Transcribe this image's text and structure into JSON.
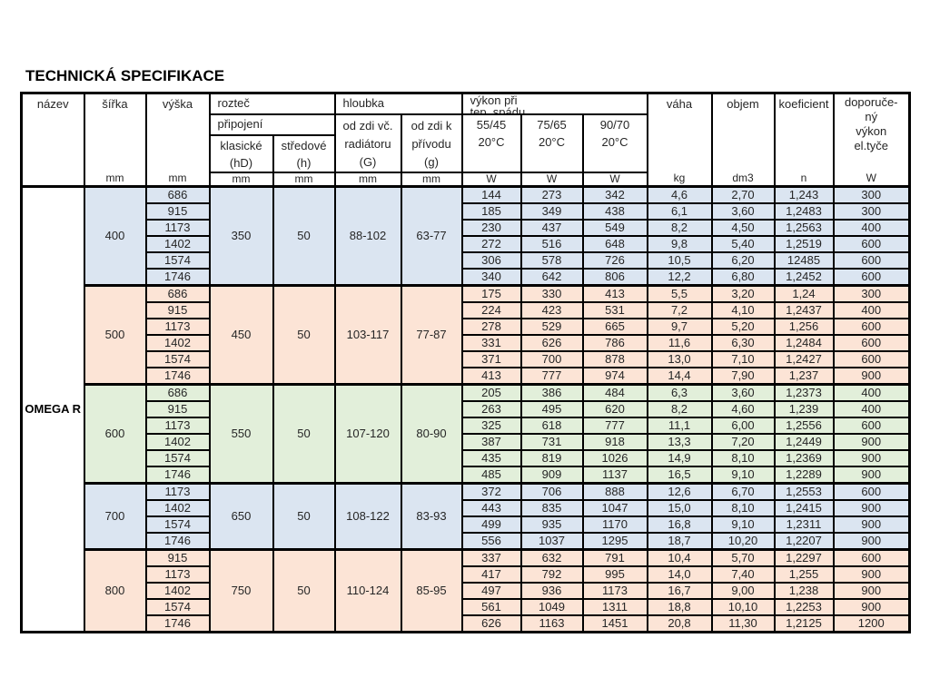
{
  "title": "TECHNICKÁ SPECIFIKACE",
  "product_name": "OMEGA R",
  "colors": {
    "blue": "#dbe5f1",
    "peach": "#fce4d6",
    "green": "#e2efda",
    "border": "#000000",
    "header_bg": "#ffffff"
  },
  "header": {
    "nazev": "název",
    "sirka": "šířka",
    "vyska": "výška",
    "roztec": "rozteč",
    "pripojeni": "připojení",
    "klasicke": {
      "l1": "klasické",
      "l2": "(hD)"
    },
    "stredove": {
      "l1": "středové",
      "l2": "(h)"
    },
    "hloubka": "hloubka",
    "od_zdi_vc": {
      "l1": "od zdi  vč.",
      "l2": "radiátoru",
      "l3": "(G)"
    },
    "od_zdi_k": {
      "l1": "od zdi  k",
      "l2": "přívodu",
      "l3": "(g)"
    },
    "vykon": {
      "l1": "výkon při",
      "l2": "tep. spádu"
    },
    "temps": [
      {
        "grad": "55/45",
        "temp": "20°C"
      },
      {
        "grad": "75/65",
        "temp": "20°C"
      },
      {
        "grad": "90/70",
        "temp": "20°C"
      }
    ],
    "vaha": "váha",
    "objem": "objem",
    "koeficient": "koeficient",
    "doporuceny": {
      "l1": "doporuče-",
      "l2": "ný",
      "l3": "výkon",
      "l4": "el.tyče"
    },
    "units": {
      "mm": "mm",
      "w": "W",
      "kg": "kg",
      "dm3": "dm3",
      "n": "n"
    }
  },
  "groups": [
    {
      "sirka": "400",
      "klasicke": "350",
      "stredove": "50",
      "hloubka_g": "88-102",
      "hloubka_p": "63-77",
      "color": "blue",
      "rows": [
        [
          "686",
          "144",
          "273",
          "342",
          "4,6",
          "2,70",
          "1,243",
          "300"
        ],
        [
          "915",
          "185",
          "349",
          "438",
          "6,1",
          "3,60",
          "1,2483",
          "300"
        ],
        [
          "1173",
          "230",
          "437",
          "549",
          "8,2",
          "4,50",
          "1,2563",
          "400"
        ],
        [
          "1402",
          "272",
          "516",
          "648",
          "9,8",
          "5,40",
          "1,2519",
          "600"
        ],
        [
          "1574",
          "306",
          "578",
          "726",
          "10,5",
          "6,20",
          "12485",
          "600"
        ],
        [
          "1746",
          "340",
          "642",
          "806",
          "12,2",
          "6,80",
          "1,2452",
          "600"
        ]
      ]
    },
    {
      "sirka": "500",
      "klasicke": "450",
      "stredove": "50",
      "hloubka_g": "103-117",
      "hloubka_p": "77-87",
      "color": "peach",
      "rows": [
        [
          "686",
          "175",
          "330",
          "413",
          "5,5",
          "3,20",
          "1,24",
          "300"
        ],
        [
          "915",
          "224",
          "423",
          "531",
          "7,2",
          "4,10",
          "1,2437",
          "400"
        ],
        [
          "1173",
          "278",
          "529",
          "665",
          "9,7",
          "5,20",
          "1,256",
          "600"
        ],
        [
          "1402",
          "331",
          "626",
          "786",
          "11,6",
          "6,30",
          "1,2484",
          "600"
        ],
        [
          "1574",
          "371",
          "700",
          "878",
          "13,0",
          "7,10",
          "1,2427",
          "600"
        ],
        [
          "1746",
          "413",
          "777",
          "974",
          "14,4",
          "7,90",
          "1,237",
          "900"
        ]
      ]
    },
    {
      "sirka": "600",
      "klasicke": "550",
      "stredove": "50",
      "hloubka_g": "107-120",
      "hloubka_p": "80-90",
      "color": "green",
      "rows": [
        [
          "686",
          "205",
          "386",
          "484",
          "6,3",
          "3,60",
          "1,2373",
          "400"
        ],
        [
          "915",
          "263",
          "495",
          "620",
          "8,2",
          "4,60",
          "1,239",
          "400"
        ],
        [
          "1173",
          "325",
          "618",
          "777",
          "11,1",
          "6,00",
          "1,2556",
          "600"
        ],
        [
          "1402",
          "387",
          "731",
          "918",
          "13,3",
          "7,20",
          "1,2449",
          "900"
        ],
        [
          "1574",
          "435",
          "819",
          "1026",
          "14,9",
          "8,10",
          "1,2369",
          "900"
        ],
        [
          "1746",
          "485",
          "909",
          "1137",
          "16,5",
          "9,10",
          "1,2289",
          "900"
        ]
      ]
    },
    {
      "sirka": "700",
      "klasicke": "650",
      "stredove": "50",
      "hloubka_g": "108-122",
      "hloubka_p": "83-93",
      "color": "blue",
      "rows": [
        [
          "1173",
          "372",
          "706",
          "888",
          "12,6",
          "6,70",
          "1,2553",
          "600"
        ],
        [
          "1402",
          "443",
          "835",
          "1047",
          "15,0",
          "8,10",
          "1,2415",
          "900"
        ],
        [
          "1574",
          "499",
          "935",
          "1170",
          "16,8",
          "9,10",
          "1,2311",
          "900"
        ],
        [
          "1746",
          "556",
          "1037",
          "1295",
          "18,7",
          "10,20",
          "1,2207",
          "900"
        ]
      ]
    },
    {
      "sirka": "800",
      "klasicke": "750",
      "stredove": "50",
      "hloubka_g": "110-124",
      "hloubka_p": "85-95",
      "color": "peach",
      "rows": [
        [
          "915",
          "337",
          "632",
          "791",
          "10,4",
          "5,70",
          "1,2297",
          "600"
        ],
        [
          "1173",
          "417",
          "792",
          "995",
          "14,0",
          "7,40",
          "1,255",
          "900"
        ],
        [
          "1402",
          "497",
          "936",
          "1173",
          "16,7",
          "9,00",
          "1,238",
          "900"
        ],
        [
          "1574",
          "561",
          "1049",
          "1311",
          "18,8",
          "10,10",
          "1,2253",
          "900"
        ],
        [
          "1746",
          "626",
          "1163",
          "1451",
          "20,8",
          "11,30",
          "1,2125",
          "1200"
        ]
      ]
    }
  ]
}
